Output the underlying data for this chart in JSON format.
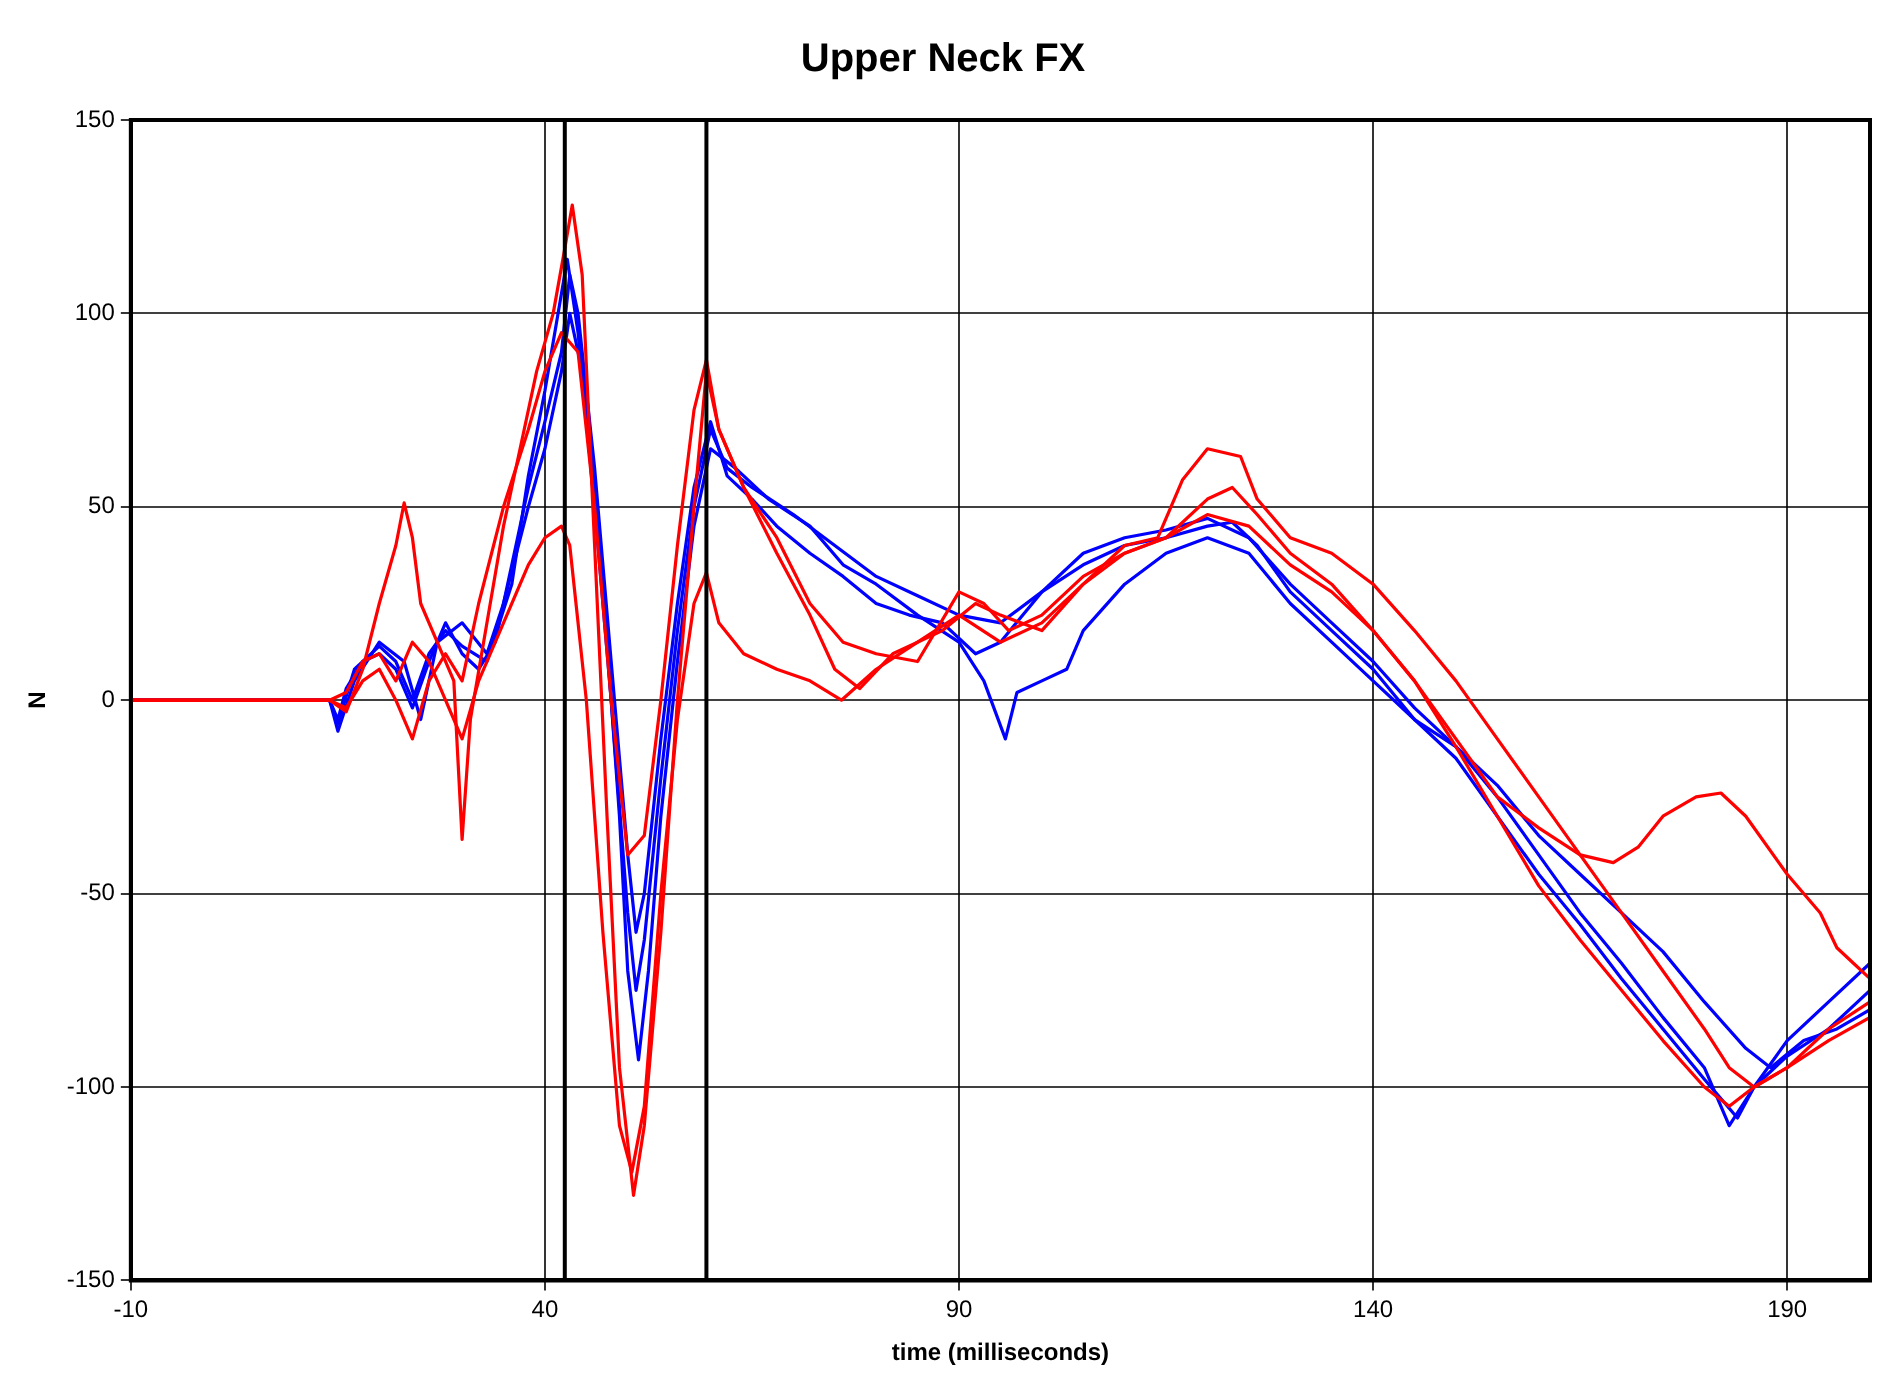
{
  "chart_data": {
    "type": "line",
    "title": "Upper Neck FX",
    "xlabel": "time (milliseconds)",
    "ylabel": "N",
    "xlim": [
      -10,
      200
    ],
    "xticks": [
      -10,
      40,
      90,
      140,
      190
    ],
    "ylim": [
      -150,
      150
    ],
    "yticks": [
      -150,
      -100,
      -50,
      0,
      50,
      100,
      150
    ],
    "grid": true,
    "marker": "none",
    "line_style": "solid",
    "ref_lines": [
      {
        "axis": "x",
        "value": 42.4,
        "color": "#000000"
      },
      {
        "axis": "x",
        "value": 59.5,
        "color": "#000000"
      }
    ],
    "series": [
      {
        "color": "#ff0000",
        "x": [
          -10,
          14,
          16,
          18,
          20,
          22,
          23,
          24,
          25,
          27,
          29,
          30,
          31,
          33,
          35,
          37,
          39,
          41,
          42.5,
          43.3,
          44.5,
          46,
          47.5,
          49,
          50.7,
          52,
          54,
          56,
          58,
          59.5,
          61,
          64,
          68,
          72,
          75,
          78,
          82,
          88,
          92,
          95,
          100,
          105,
          110,
          114,
          117,
          120,
          124,
          126,
          130,
          135,
          140,
          145,
          150,
          155,
          160,
          165,
          170,
          175,
          180,
          183,
          186,
          190,
          195,
          200
        ],
        "values": [
          0,
          0,
          -3,
          8,
          25,
          40,
          51,
          42,
          25,
          15,
          5,
          -36,
          -5,
          20,
          45,
          65,
          85,
          100,
          118,
          128,
          110,
          40,
          -30,
          -95,
          -128,
          -110,
          -60,
          0,
          50,
          85,
          70,
          55,
          38,
          22,
          8,
          3,
          12,
          18,
          25,
          22,
          18,
          30,
          40,
          42,
          57,
          65,
          63,
          52,
          42,
          38,
          30,
          18,
          5,
          -10,
          -25,
          -40,
          -55,
          -70,
          -85,
          -95,
          -100,
          -95,
          -88,
          -82
        ]
      },
      {
        "color": "#ff0000",
        "x": [
          -10,
          14,
          16,
          18,
          20,
          22,
          24,
          26,
          28,
          30,
          32,
          35,
          38,
          40,
          42,
          43,
          45,
          47,
          49,
          50.5,
          52,
          54,
          56,
          58,
          59.5,
          61,
          64,
          68,
          72,
          75.8,
          80,
          85,
          90,
          95,
          100,
          105,
          110,
          115,
          120,
          125,
          130,
          135,
          140,
          145,
          150,
          155,
          160,
          165,
          169,
          172,
          175,
          179,
          182,
          185,
          190,
          194,
          196,
          198,
          200
        ],
        "values": [
          0,
          0,
          2,
          10,
          12,
          5,
          15,
          10,
          0,
          -10,
          5,
          20,
          35,
          42,
          45,
          40,
          0,
          -60,
          -110,
          -122,
          -105,
          -50,
          -5,
          25,
          33,
          20,
          12,
          8,
          5,
          0,
          8,
          15,
          22,
          15,
          20,
          30,
          38,
          42,
          48,
          45,
          35,
          28,
          18,
          5,
          -10,
          -25,
          -33,
          -40,
          -42,
          -38,
          -30,
          -25,
          -24,
          -30,
          -45,
          -55,
          -64,
          -68,
          -72
        ]
      },
      {
        "color": "#ff0000",
        "x": [
          -10,
          14,
          16,
          18,
          20,
          22,
          24,
          26,
          28,
          30,
          32,
          35,
          38,
          40,
          42,
          44,
          46,
          48,
          50,
          52,
          54,
          56,
          58,
          59.5,
          61,
          64,
          68,
          72,
          76,
          80,
          85,
          90,
          93,
          96,
          100,
          105,
          110,
          115,
          120,
          123,
          126,
          130,
          135,
          140,
          145,
          150,
          155,
          160,
          165,
          170,
          175,
          180,
          183,
          186,
          190,
          195,
          200
        ],
        "values": [
          0,
          0,
          -2,
          5,
          8,
          0,
          -10,
          5,
          12,
          5,
          25,
          50,
          70,
          85,
          95,
          90,
          50,
          0,
          -40,
          -35,
          0,
          40,
          75,
          88,
          70,
          55,
          42,
          25,
          15,
          12,
          10,
          28,
          25,
          18,
          22,
          32,
          38,
          42,
          52,
          55,
          48,
          38,
          30,
          18,
          5,
          -12,
          -30,
          -48,
          -62,
          -75,
          -88,
          -100,
          -105,
          -100,
          -95,
          -85,
          -78
        ]
      },
      {
        "color": "#0000ff",
        "x": [
          -10,
          14,
          15,
          16,
          18,
          20,
          22,
          24,
          26,
          28,
          30,
          32,
          34,
          36,
          38,
          40,
          42,
          43,
          44,
          46,
          48,
          50,
          51,
          52,
          54,
          56,
          58,
          60,
          62,
          65,
          68,
          72,
          76,
          80,
          84,
          88,
          92,
          95,
          100,
          105,
          110,
          115,
          120,
          123,
          126,
          130,
          135,
          140,
          145,
          150,
          155,
          160,
          165,
          170,
          175,
          180,
          184,
          186,
          190,
          195,
          200
        ],
        "values": [
          0,
          0,
          -5,
          3,
          10,
          12,
          8,
          -2,
          10,
          20,
          12,
          8,
          15,
          35,
          55,
          72,
          90,
          110,
          100,
          60,
          10,
          -40,
          -60,
          -50,
          -10,
          25,
          55,
          72,
          58,
          52,
          45,
          38,
          32,
          25,
          22,
          20,
          12,
          15,
          28,
          35,
          40,
          42,
          45,
          46,
          40,
          28,
          18,
          8,
          -5,
          -15,
          -30,
          -45,
          -58,
          -72,
          -85,
          -98,
          -108,
          -100,
          -92,
          -85,
          -75
        ]
      },
      {
        "color": "#0000ff",
        "x": [
          -10,
          14,
          15,
          17,
          20,
          23,
          25,
          27,
          30,
          33,
          35,
          38,
          40,
          42,
          43,
          45,
          47,
          49,
          50,
          51.3,
          52.5,
          54,
          56,
          58,
          60,
          63,
          67,
          72,
          76,
          80,
          85,
          90,
          93,
          95.6,
          97,
          100,
          103,
          105,
          110,
          115,
          120,
          125,
          130,
          135,
          140,
          145,
          150,
          155,
          160,
          165,
          170,
          175,
          180,
          185,
          188,
          192,
          196,
          200
        ],
        "values": [
          0,
          0,
          -8,
          5,
          15,
          10,
          -5,
          15,
          20,
          12,
          25,
          50,
          65,
          85,
          100,
          80,
          30,
          -30,
          -70,
          -93,
          -70,
          -30,
          10,
          45,
          65,
          60,
          52,
          45,
          35,
          30,
          22,
          15,
          5,
          -10,
          2,
          5,
          8,
          18,
          30,
          38,
          42,
          38,
          25,
          15,
          5,
          -5,
          -12,
          -22,
          -35,
          -45,
          -55,
          -65,
          -78,
          -90,
          -95,
          -88,
          -85,
          -80
        ]
      },
      {
        "color": "#0000ff",
        "x": [
          -10,
          14,
          15,
          17,
          20,
          22,
          24,
          26,
          28,
          30,
          33,
          36,
          38,
          40,
          42.7,
          44,
          46,
          48,
          50,
          51,
          52,
          54,
          56,
          58,
          60,
          62,
          65,
          70,
          75,
          80,
          85,
          90,
          95,
          100,
          105,
          110,
          115,
          120,
          125,
          130,
          135,
          140,
          145,
          150,
          155,
          160,
          165,
          170,
          175,
          180,
          183,
          186,
          190,
          195,
          200
        ],
        "values": [
          0,
          0,
          -6,
          8,
          14,
          10,
          0,
          12,
          18,
          14,
          10,
          30,
          58,
          80,
          114,
          95,
          50,
          0,
          -55,
          -75,
          -62,
          -20,
          18,
          50,
          70,
          60,
          55,
          48,
          40,
          32,
          27,
          22,
          20,
          28,
          38,
          42,
          44,
          47,
          42,
          30,
          20,
          10,
          -2,
          -12,
          -25,
          -40,
          -55,
          -68,
          -82,
          -95,
          -110,
          -100,
          -88,
          -78,
          -68
        ]
      }
    ]
  }
}
